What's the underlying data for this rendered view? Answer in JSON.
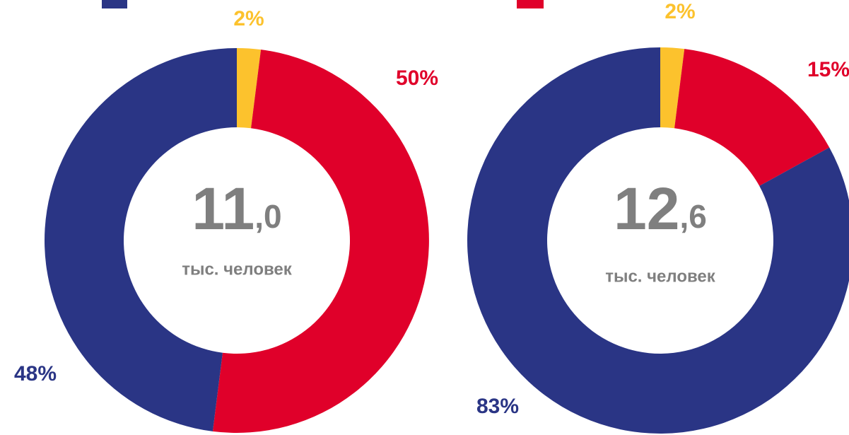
{
  "chart_data": [
    {
      "type": "donut",
      "values": [
        2,
        50,
        48
      ],
      "value_labels": [
        "2%",
        "50%",
        "48%"
      ],
      "colors": [
        "#fcc22d",
        "#e0002a",
        "#2a3585"
      ],
      "center_whole": "11",
      "center_fraction": ",0",
      "center_caption": "тыс. человек"
    },
    {
      "type": "donut",
      "values": [
        2,
        15,
        83
      ],
      "value_labels": [
        "2%",
        "15%",
        "83%"
      ],
      "colors": [
        "#fcc22d",
        "#e0002a",
        "#2a3585"
      ],
      "center_whole": "12",
      "center_fraction": ",6",
      "center_caption": "тыс. человек"
    }
  ]
}
